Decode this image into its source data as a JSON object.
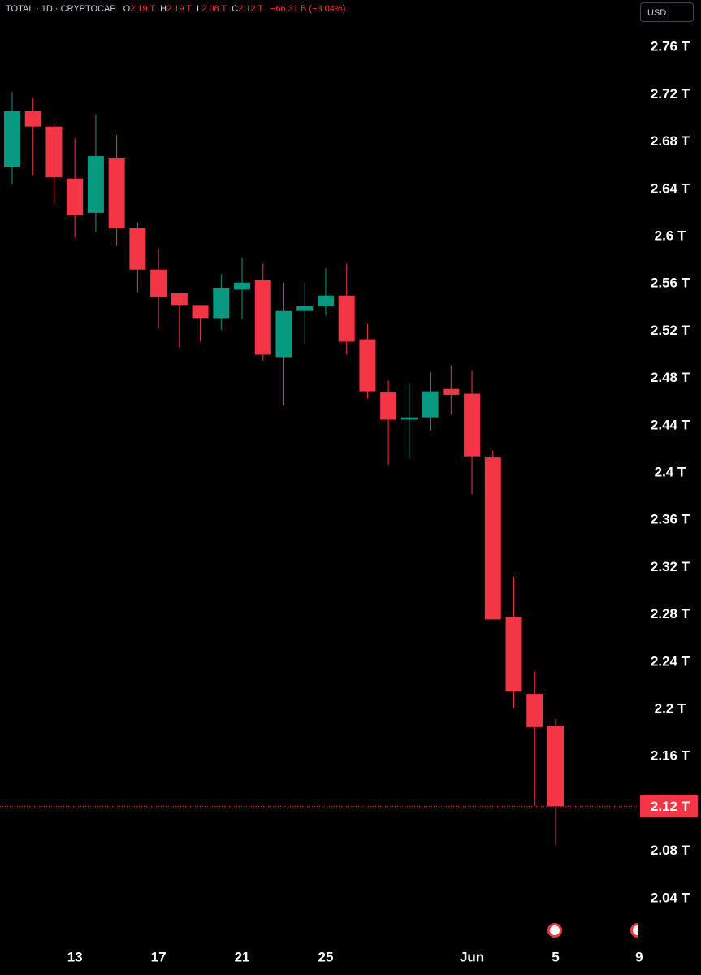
{
  "chart_data": {
    "type": "candlestick",
    "symbol": "TOTAL · 1D · CRYPTOCAP",
    "ohlc": [
      {
        "key": "O",
        "text": "2.19 T"
      },
      {
        "key": "H",
        "text": "2.19 T"
      },
      {
        "key": "L",
        "text": "2.08 T"
      },
      {
        "key": "C",
        "text": "2.12 T"
      }
    ],
    "change": "−66.31 B (−3.04%)",
    "currency": "USD",
    "categories": [
      null,
      null,
      null,
      "13",
      null,
      null,
      null,
      "17",
      null,
      null,
      null,
      "21",
      null,
      null,
      null,
      "25",
      null,
      null,
      null,
      null,
      null,
      null,
      "Jun",
      null,
      null,
      null,
      "5",
      null,
      null,
      null,
      "9"
    ],
    "open": [
      2.659,
      2.706,
      2.693,
      2.649,
      2.62,
      2.666,
      2.607,
      2.572,
      2.552,
      2.542,
      2.531,
      2.555,
      2.563,
      2.498,
      2.537,
      2.541,
      2.55,
      2.513,
      2.468,
      2.445,
      2.447,
      2.471,
      2.467,
      2.413,
      2.278,
      2.213,
      2.186,
      null,
      null,
      null,
      null
    ],
    "high": [
      2.722,
      2.717,
      2.696,
      2.683,
      2.703,
      2.686,
      2.612,
      2.59,
      2.552,
      2.542,
      2.568,
      2.582,
      2.577,
      2.561,
      2.561,
      2.573,
      2.577,
      2.526,
      2.478,
      2.476,
      2.485,
      2.491,
      2.487,
      2.419,
      2.312,
      2.232,
      2.192,
      null,
      null,
      null,
      null
    ],
    "low": [
      2.644,
      2.652,
      2.627,
      2.599,
      2.604,
      2.592,
      2.553,
      2.522,
      2.506,
      2.511,
      2.521,
      2.53,
      2.495,
      2.457,
      2.509,
      2.533,
      2.5,
      2.463,
      2.407,
      2.412,
      2.436,
      2.449,
      2.382,
      2.276,
      2.201,
      2.118,
      2.085,
      null,
      null,
      null,
      null
    ],
    "close": [
      2.706,
      2.693,
      2.65,
      2.618,
      2.668,
      2.607,
      2.572,
      2.549,
      2.542,
      2.531,
      2.556,
      2.561,
      2.5,
      2.537,
      2.541,
      2.55,
      2.511,
      2.469,
      2.445,
      2.447,
      2.469,
      2.466,
      2.414,
      2.276,
      2.215,
      2.185,
      2.118,
      null,
      null,
      null,
      null
    ],
    "up_color": "#089981",
    "down_color": "#f23645",
    "ylim": [
      2.0,
      2.8
    ],
    "yticks": [
      {
        "value": 2.04,
        "label": "2.04 T"
      },
      {
        "value": 2.08,
        "label": "2.08 T"
      },
      {
        "value": 2.12,
        "label": "2.12 T"
      },
      {
        "value": 2.16,
        "label": "2.16 T"
      },
      {
        "value": 2.2,
        "label": "2.2 T"
      },
      {
        "value": 2.24,
        "label": "2.24 T"
      },
      {
        "value": 2.28,
        "label": "2.28 T"
      },
      {
        "value": 2.32,
        "label": "2.32 T"
      },
      {
        "value": 2.36,
        "label": "2.36 T"
      },
      {
        "value": 2.4,
        "label": "2.4 T"
      },
      {
        "value": 2.44,
        "label": "2.44 T"
      },
      {
        "value": 2.48,
        "label": "2.48 T"
      },
      {
        "value": 2.52,
        "label": "2.52 T"
      },
      {
        "value": 2.56,
        "label": "2.56 T"
      },
      {
        "value": 2.6,
        "label": "2.6 T"
      },
      {
        "value": 2.64,
        "label": "2.64 T"
      },
      {
        "value": 2.68,
        "label": "2.68 T"
      },
      {
        "value": 2.72,
        "label": "2.72 T"
      },
      {
        "value": 2.76,
        "label": "2.76 T"
      }
    ],
    "last_price": {
      "value": 2.118,
      "label": "2.12 T"
    }
  }
}
